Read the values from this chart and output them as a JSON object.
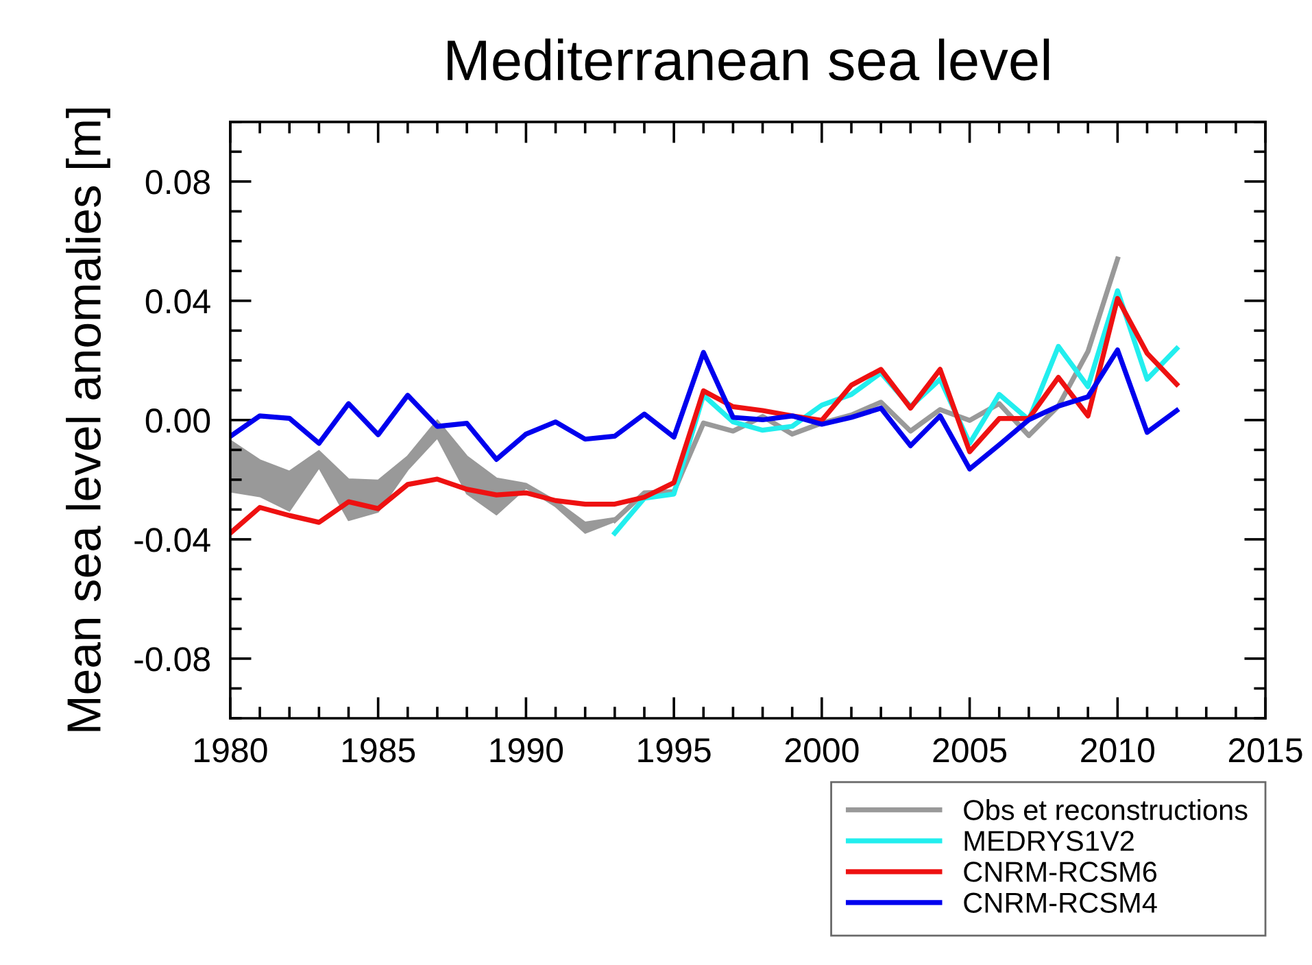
{
  "chart_data": {
    "type": "line",
    "title": "Mediterranean sea level",
    "ylabel": "Mean sea level anomalies [m]",
    "x": [
      1980,
      1981,
      1982,
      1983,
      1984,
      1985,
      1986,
      1987,
      1988,
      1989,
      1990,
      1991,
      1992,
      1993,
      1994,
      1995,
      1996,
      1997,
      1998,
      1999,
      2000,
      2001,
      2002,
      2003,
      2004,
      2005,
      2006,
      2007,
      2008,
      2009,
      2010,
      2011,
      2012
    ],
    "series": [
      {
        "name": "Obs et reconstructions",
        "color": "#999999",
        "values": [
          null,
          null,
          null,
          null,
          null,
          null,
          null,
          null,
          null,
          null,
          null,
          null,
          null,
          -0.0336,
          -0.0244,
          -0.024,
          -0.001,
          -0.0037,
          0.0012,
          -0.0047,
          -0.001,
          0.0017,
          0.006,
          -0.0037,
          0.0035,
          -0.0001,
          0.0055,
          -0.0052,
          0.0047,
          0.023,
          0.054,
          null,
          null
        ],
        "lower": [
          -0.024,
          -0.0256,
          -0.0305,
          -0.016,
          -0.0336,
          -0.0308,
          -0.0167,
          -0.006,
          -0.0247,
          -0.0317,
          -0.0228,
          -0.029,
          -0.0379,
          -0.034,
          null,
          null,
          null,
          null,
          null,
          null,
          null,
          null,
          null,
          null,
          null,
          null,
          null,
          null,
          null,
          null,
          null,
          null,
          null
        ],
        "upper": [
          -0.0068,
          -0.0134,
          -0.0172,
          -0.0103,
          -0.0198,
          -0.0202,
          -0.0121,
          0.0,
          -0.0121,
          -0.0195,
          -0.0213,
          -0.027,
          -0.0343,
          -0.0328,
          null,
          null,
          null,
          null,
          null,
          null,
          null,
          null,
          null,
          null,
          null,
          null,
          null,
          null,
          null,
          null,
          null,
          null,
          null
        ]
      },
      {
        "name": "MEDRYS1V2",
        "color": "#22eeee",
        "values": [
          null,
          null,
          null,
          null,
          null,
          null,
          null,
          null,
          null,
          null,
          null,
          null,
          null,
          -0.0379,
          -0.0262,
          -0.0248,
          0.0083,
          -0.0006,
          -0.0034,
          -0.0021,
          0.005,
          0.0086,
          0.0158,
          0.0045,
          0.0137,
          -0.0078,
          0.0086,
          0.0001,
          0.0247,
          0.0112,
          0.0434,
          0.0137,
          0.024
        ]
      },
      {
        "name": "CNRM-RCSM6",
        "color": "#ee1111",
        "values": [
          -0.0379,
          -0.0293,
          -0.032,
          -0.0343,
          -0.0274,
          -0.0297,
          -0.0216,
          -0.0198,
          -0.0232,
          -0.0251,
          -0.0244,
          -0.027,
          -0.0282,
          -0.0282,
          -0.0259,
          -0.021,
          0.0098,
          0.0045,
          0.0032,
          0.0014,
          -0.0001,
          0.0117,
          0.017,
          0.004,
          0.017,
          -0.0106,
          0.0005,
          0.0005,
          0.0143,
          0.0014,
          0.0408,
          0.0224,
          0.012
        ]
      },
      {
        "name": "CNRM-RCSM4",
        "color": "#0000ee",
        "values": [
          -0.0055,
          0.0014,
          0.0006,
          -0.0078,
          0.0055,
          -0.0049,
          0.0083,
          -0.0021,
          -0.0011,
          -0.0132,
          -0.0047,
          -0.0006,
          -0.0064,
          -0.0054,
          0.002,
          -0.0057,
          0.0227,
          0.0009,
          0.0001,
          0.0014,
          -0.0014,
          0.0009,
          0.004,
          -0.0086,
          0.0014,
          -0.0164,
          -0.0083,
          0.0001,
          0.0047,
          0.0078,
          0.0235,
          -0.0041,
          0.0032
        ]
      }
    ],
    "xlim": [
      1980,
      2015
    ],
    "xticks": [
      1980,
      1985,
      1990,
      1995,
      2000,
      2005,
      2010,
      2015
    ],
    "ylim": [
      -0.1,
      0.1
    ],
    "yticks": [
      {
        "value": -0.08,
        "label": "-0.08"
      },
      {
        "value": -0.04,
        "label": "-0.04"
      },
      {
        "value": 0,
        "label": "0.00"
      },
      {
        "value": 0.04,
        "label": "0.04"
      },
      {
        "value": 0.08,
        "label": "0.08"
      }
    ],
    "grid": false,
    "legend": "bottom right",
    "marker": "none",
    "line_style": "solid"
  }
}
